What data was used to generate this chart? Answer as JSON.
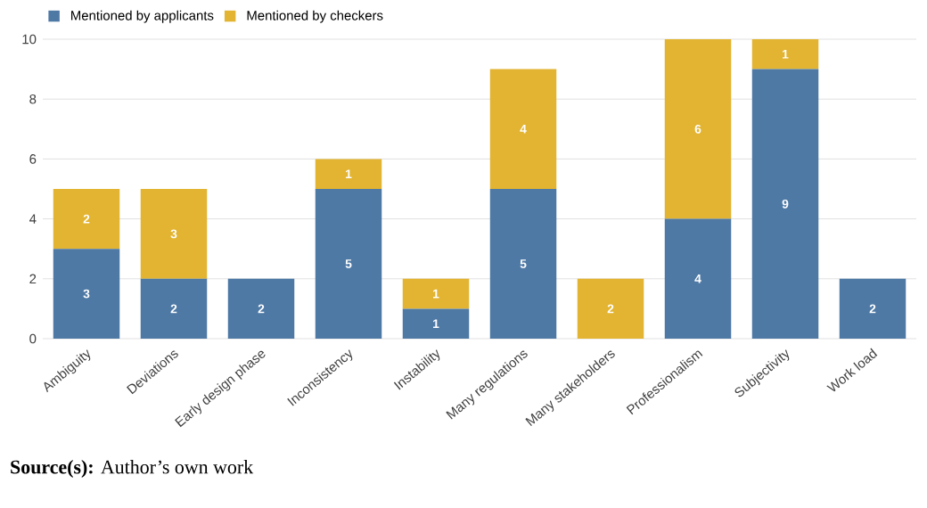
{
  "chart_data": {
    "type": "bar",
    "stacked": true,
    "categories": [
      "Ambiguity",
      "Deviations",
      "Early design phase",
      "Inconsistency",
      "Instability",
      "Many regulations",
      "Many stakeholders",
      "Professionalism",
      "Subjectivity",
      "Work load"
    ],
    "series": [
      {
        "name": "Mentioned by applicants",
        "color": "#4e79a5",
        "values": [
          3,
          2,
          2,
          5,
          1,
          5,
          0,
          4,
          9,
          2
        ],
        "value_labels": [
          "3",
          "2",
          "2",
          "5",
          "1",
          "5",
          null,
          "4",
          "9",
          "2"
        ]
      },
      {
        "name": "Mentioned by checkers",
        "color": "#e2b431",
        "values": [
          2,
          3,
          0,
          1,
          1,
          4,
          2,
          6,
          1,
          0
        ],
        "value_labels": [
          "2",
          "3",
          null,
          "1",
          "1",
          "4",
          "2",
          "6",
          "1",
          null
        ]
      }
    ],
    "ylim": [
      0,
      10
    ],
    "yticks": [
      0,
      2,
      4,
      6,
      8,
      10
    ],
    "grid": "y",
    "legend": "top left",
    "annotations": [
      "**Source(s):** Author’s own work"
    ]
  }
}
